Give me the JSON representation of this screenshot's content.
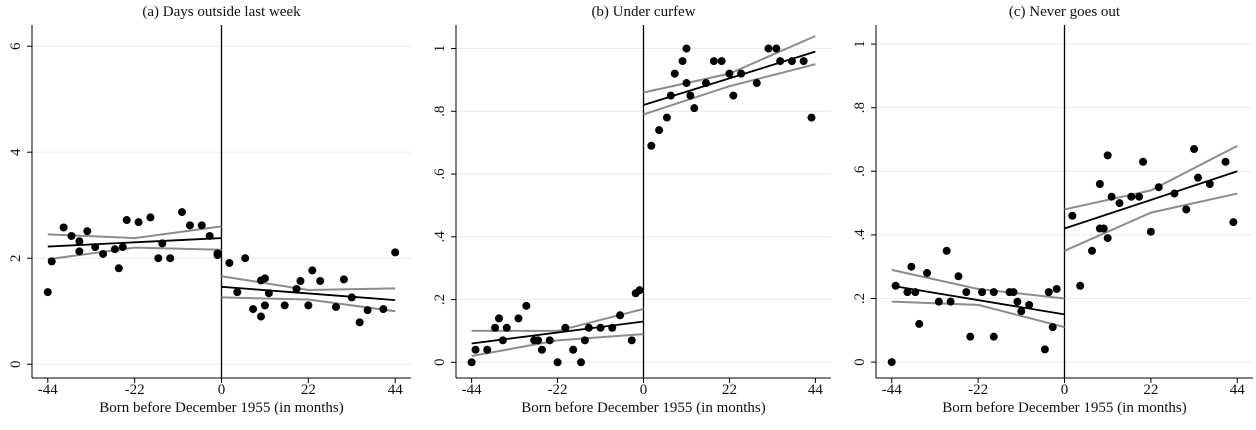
{
  "chart_data": [
    {
      "type": "scatter",
      "title": "(a) Days outside last week",
      "xlabel": "Born before December 1955 (in months)",
      "xlim": [
        -48,
        48
      ],
      "xticks": [
        -44,
        -22,
        0,
        22,
        44
      ],
      "ylim": [
        -0.26,
        6.4
      ],
      "yticks": [
        0,
        2,
        4,
        6
      ],
      "grid": true,
      "cutoff": 0,
      "color": "#000000",
      "fit_color": "#000000",
      "ci_color": "#8c8c8c",
      "x": [
        -44,
        -43,
        -40,
        -38,
        -36,
        -36,
        -34,
        -32,
        -30,
        -27,
        -26,
        -25,
        -24,
        -21,
        -18,
        -16,
        -15,
        -13,
        -10,
        -8,
        -5,
        -3,
        -1,
        -1,
        2,
        6,
        4,
        8,
        10,
        11,
        10,
        11,
        12,
        16,
        19,
        20,
        22,
        23,
        25,
        29,
        31,
        33,
        35,
        37,
        41,
        44
      ],
      "values": [
        1.36,
        1.94,
        2.58,
        2.42,
        2.32,
        2.13,
        2.51,
        2.21,
        2.08,
        2.17,
        1.81,
        2.21,
        2.72,
        2.68,
        2.77,
        2.0,
        2.28,
        2.0,
        2.87,
        2.62,
        2.62,
        2.42,
        2.09,
        2.06,
        1.91,
        2.0,
        1.36,
        1.04,
        1.58,
        1.62,
        0.9,
        1.11,
        1.34,
        1.11,
        1.42,
        1.57,
        1.11,
        1.77,
        1.57,
        1.08,
        1.6,
        1.26,
        0.79,
        1.02,
        1.04,
        2.11
      ],
      "fit": [
        {
          "x": [
            -44,
            0
          ],
          "values": [
            2.22,
            2.38
          ]
        },
        {
          "x": [
            0,
            44
          ],
          "values": [
            1.46,
            1.21
          ]
        }
      ],
      "ci": [
        {
          "x": [
            -44,
            -22,
            0
          ],
          "values": [
            2.45,
            2.38,
            2.6
          ]
        },
        {
          "x": [
            -44,
            -22,
            0
          ],
          "values": [
            1.98,
            2.2,
            2.16
          ]
        },
        {
          "x": [
            0,
            22,
            44
          ],
          "values": [
            1.66,
            1.4,
            1.43
          ]
        },
        {
          "x": [
            0,
            22,
            44
          ],
          "values": [
            1.26,
            1.22,
            1.0
          ]
        }
      ]
    },
    {
      "type": "scatter",
      "title": "(b) Under curfew",
      "xlabel": "Born before December 1955 (in months)",
      "xlim": [
        -48,
        48
      ],
      "xticks": [
        -44,
        -22,
        0,
        22,
        44
      ],
      "ylim": [
        -0.05,
        1.075
      ],
      "yticks": [
        0,
        {
          "value": 0.2,
          "label": ".2"
        },
        {
          "value": 0.4,
          "label": ".4"
        },
        {
          "value": 0.6,
          "label": ".6"
        },
        {
          "value": 0.8,
          "label": ".8"
        },
        1
      ],
      "grid": true,
      "cutoff": 0,
      "color": "#000000",
      "fit_color": "#000000",
      "ci_color": "#8c8c8c",
      "x": [
        -44,
        -43,
        -40,
        -38,
        -37,
        -36,
        -35,
        -32,
        -30,
        -28,
        -27,
        -26,
        -24,
        -22,
        -20,
        -18,
        -16,
        -15,
        -14,
        -11,
        -8,
        -6,
        -3,
        -2,
        -1,
        2,
        4,
        6,
        7,
        8,
        10,
        11,
        11,
        12,
        13,
        16,
        18,
        20,
        22,
        23,
        25,
        29,
        32,
        34,
        35,
        38,
        41,
        43
      ],
      "values": [
        0.0,
        0.04,
        0.04,
        0.11,
        0.14,
        0.07,
        0.11,
        0.14,
        0.18,
        0.07,
        0.07,
        0.04,
        0.07,
        0.0,
        0.11,
        0.04,
        0.0,
        0.07,
        0.11,
        0.11,
        0.11,
        0.15,
        0.07,
        0.22,
        0.23,
        0.69,
        0.74,
        0.78,
        0.85,
        0.92,
        0.96,
        0.89,
        1.0,
        0.85,
        0.81,
        0.89,
        0.96,
        0.96,
        0.92,
        0.85,
        0.92,
        0.89,
        1.0,
        1.0,
        0.96,
        0.96,
        0.96,
        0.78
      ],
      "fit": [
        {
          "x": [
            -44,
            0
          ],
          "values": [
            0.06,
            0.13
          ]
        },
        {
          "x": [
            0,
            44
          ],
          "values": [
            0.82,
            0.99
          ]
        }
      ],
      "ci": [
        {
          "x": [
            -44,
            -22,
            0
          ],
          "values": [
            0.1,
            0.1,
            0.17
          ]
        },
        {
          "x": [
            -44,
            -22,
            0
          ],
          "values": [
            0.02,
            0.07,
            0.09
          ]
        },
        {
          "x": [
            0,
            22,
            44
          ],
          "values": [
            0.86,
            0.92,
            1.04
          ]
        },
        {
          "x": [
            0,
            22,
            44
          ],
          "values": [
            0.79,
            0.88,
            0.95
          ]
        }
      ]
    },
    {
      "type": "scatter",
      "title": "(c) Never goes out",
      "xlabel": "Born before December 1955 (in months)",
      "xlim": [
        -48,
        48
      ],
      "xticks": [
        -44,
        -22,
        0,
        22,
        44
      ],
      "ylim": [
        -0.05,
        1.06
      ],
      "yticks": [
        0,
        {
          "value": 0.2,
          "label": ".2"
        },
        {
          "value": 0.4,
          "label": ".4"
        },
        {
          "value": 0.6,
          "label": ".6"
        },
        {
          "value": 0.8,
          "label": ".8"
        },
        1
      ],
      "grid": true,
      "cutoff": 0,
      "color": "#000000",
      "fit_color": "#000000",
      "ci_color": "#8c8c8c",
      "x": [
        -44,
        -43,
        -40,
        -39,
        -38,
        -37,
        -35,
        -32,
        -30,
        -29,
        -27,
        -25,
        -24,
        -21,
        -18,
        -18,
        -14,
        -13,
        -12,
        -11,
        -9,
        -5,
        -4,
        -3,
        -2,
        2,
        4,
        7,
        9,
        9,
        10,
        11,
        11,
        12,
        14,
        17,
        19,
        20,
        22,
        24,
        28,
        31,
        33,
        34,
        37,
        41,
        43
      ],
      "values": [
        0.0,
        0.24,
        0.22,
        0.3,
        0.22,
        0.12,
        0.28,
        0.19,
        0.35,
        0.19,
        0.27,
        0.22,
        0.08,
        0.22,
        0.08,
        0.22,
        0.22,
        0.22,
        0.19,
        0.16,
        0.18,
        0.04,
        0.22,
        0.11,
        0.23,
        0.46,
        0.24,
        0.35,
        0.42,
        0.56,
        0.42,
        0.65,
        0.39,
        0.52,
        0.5,
        0.52,
        0.52,
        0.63,
        0.41,
        0.55,
        0.53,
        0.48,
        0.67,
        0.58,
        0.56,
        0.63,
        0.44
      ],
      "fit": [
        {
          "x": [
            -44,
            0
          ],
          "values": [
            0.24,
            0.15
          ]
        },
        {
          "x": [
            0,
            44
          ],
          "values": [
            0.42,
            0.6
          ]
        }
      ],
      "ci": [
        {
          "x": [
            -44,
            -22,
            0
          ],
          "values": [
            0.29,
            0.23,
            0.2
          ]
        },
        {
          "x": [
            -44,
            -22,
            0
          ],
          "values": [
            0.19,
            0.18,
            0.11
          ]
        },
        {
          "x": [
            0,
            22,
            44
          ],
          "values": [
            0.48,
            0.54,
            0.68
          ]
        },
        {
          "x": [
            0,
            22,
            44
          ],
          "values": [
            0.35,
            0.47,
            0.53
          ]
        }
      ]
    }
  ]
}
